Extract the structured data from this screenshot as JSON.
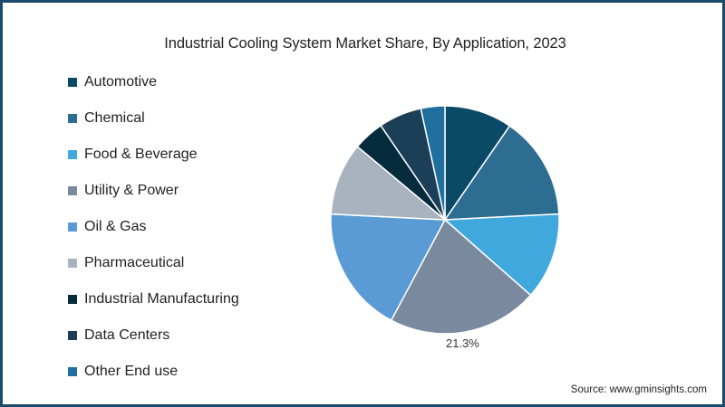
{
  "title": "Industrial Cooling System Market Share, By Application, 2023",
  "source": "Source: www.gminsights.com",
  "frame_color": "#1b4b6b",
  "chart_data": {
    "type": "pie",
    "title": "Industrial Cooling System Market Share, By Application, 2023",
    "categories": [
      "Automotive",
      "Chemical",
      "Food & Beverage",
      "Utility & Power",
      "Oil & Gas",
      "Pharmaceutical",
      "Industrial Manufacturing",
      "Data Centers",
      "Other End use"
    ],
    "values": [
      9.6,
      14.6,
      12.3,
      21.3,
      18.0,
      10.3,
      4.4,
      6.1,
      3.4
    ],
    "colors": [
      "#0b4a66",
      "#2e6d92",
      "#41a8de",
      "#7a8a9e",
      "#5b9bd5",
      "#a9b3bf",
      "#062b3d",
      "#1c3f58",
      "#1f6f9f"
    ],
    "annotations": [
      {
        "category": "Utility & Power",
        "text": "21.3%"
      }
    ],
    "legend_position": "left",
    "start_angle_deg": 0,
    "direction": "clockwise"
  },
  "legend": [
    {
      "label": "Automotive",
      "color": "#0b4a66"
    },
    {
      "label": "Chemical",
      "color": "#2e6d92"
    },
    {
      "label": "Food & Beverage",
      "color": "#41a8de"
    },
    {
      "label": "Utility & Power",
      "color": "#7a8a9e"
    },
    {
      "label": "Oil & Gas",
      "color": "#5b9bd5"
    },
    {
      "label": "Pharmaceutical",
      "color": "#a9b3bf"
    },
    {
      "label": "Industrial Manufacturing",
      "color": "#062b3d"
    },
    {
      "label": "Data Centers",
      "color": "#1c3f58"
    },
    {
      "label": "Other End use",
      "color": "#1f6f9f"
    }
  ]
}
